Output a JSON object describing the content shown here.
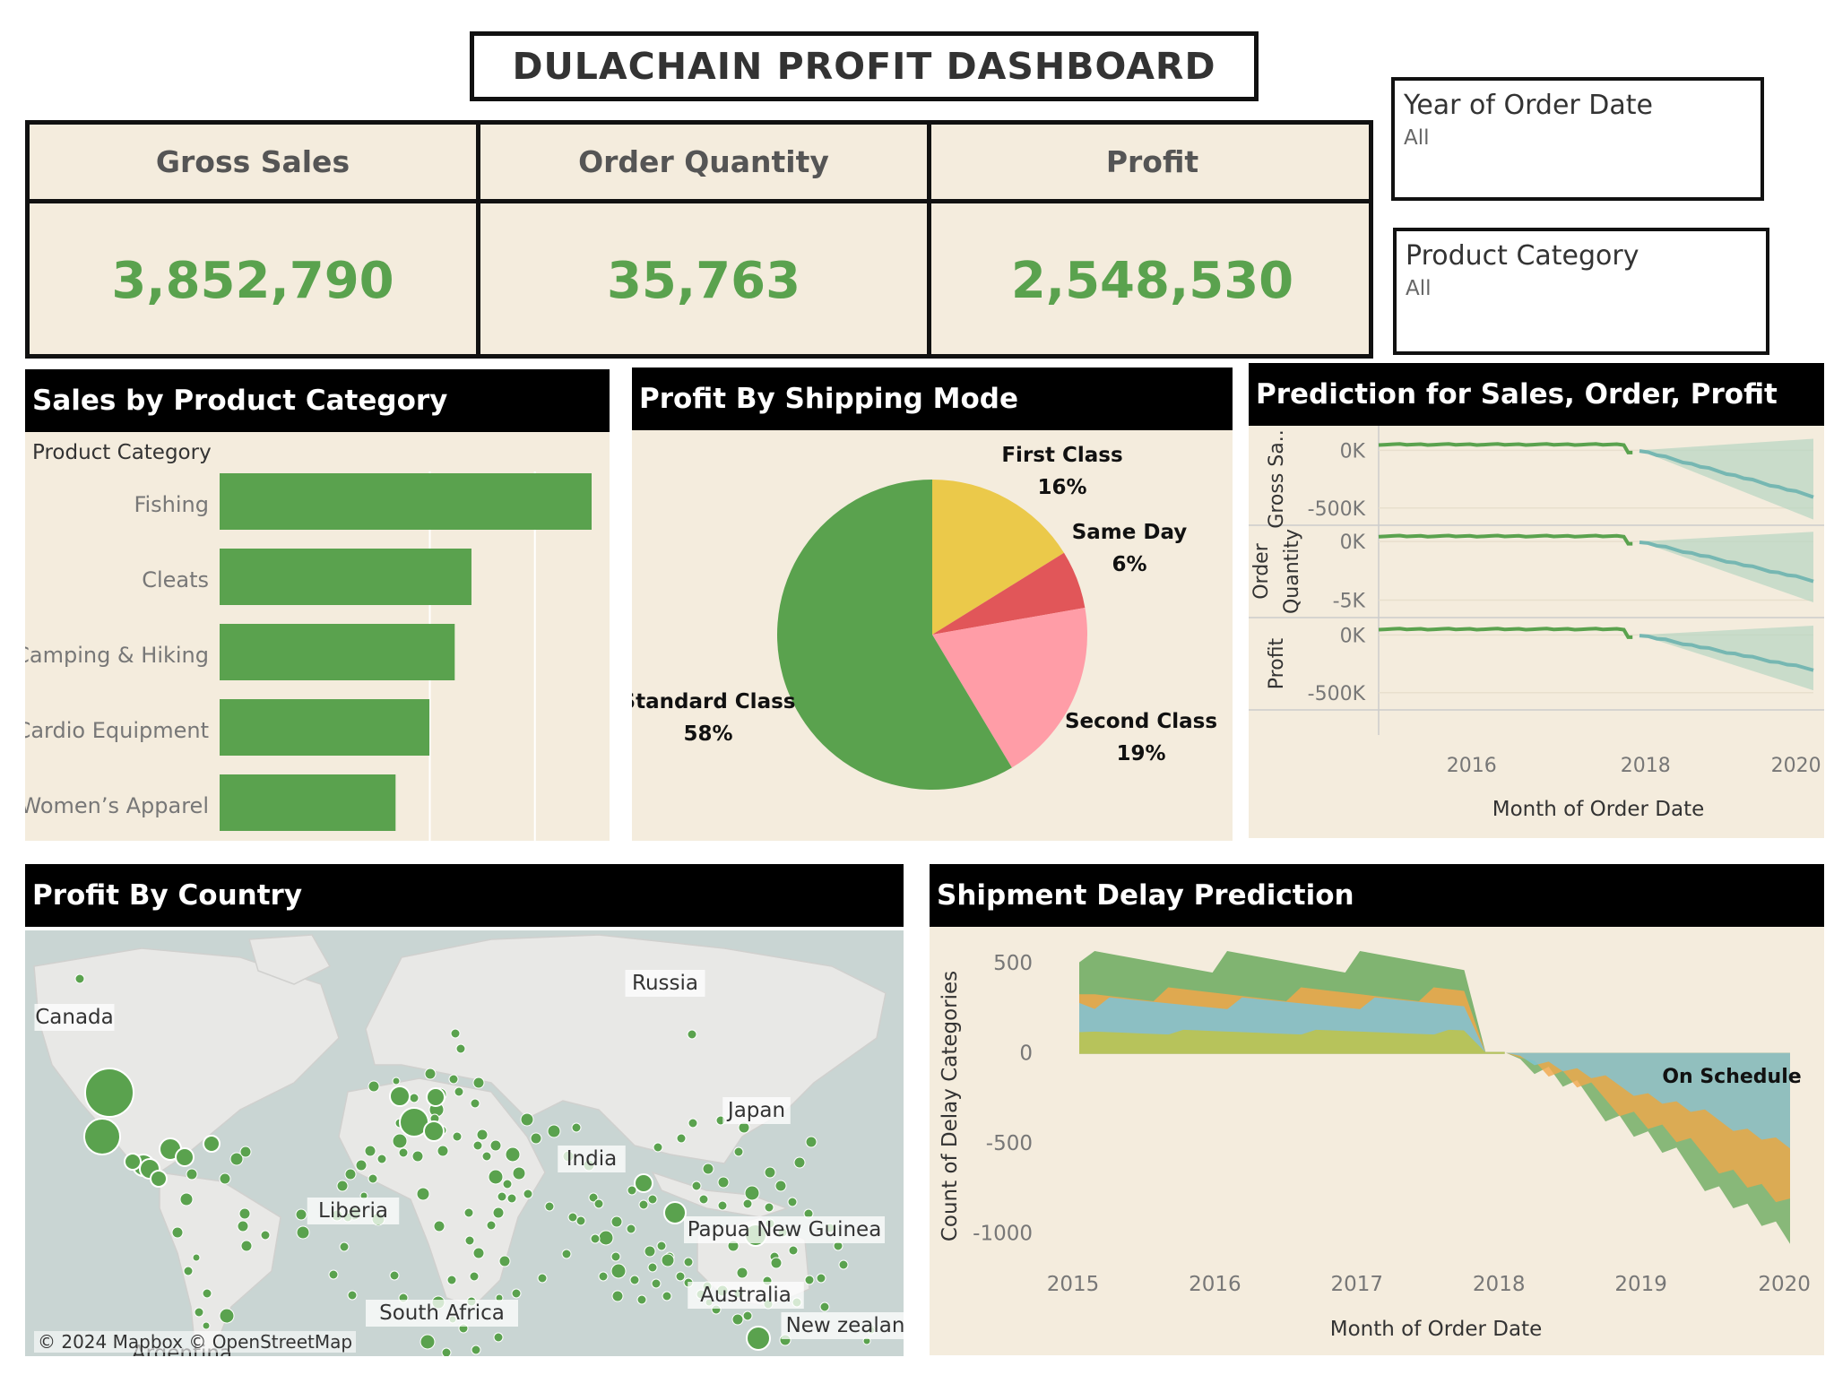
{
  "dashboard_title": "DULACHAIN PROFIT DASHBOARD",
  "kpis": [
    {
      "label": "Gross Sales",
      "value": "3,852,790"
    },
    {
      "label": "Order Quantity",
      "value": "35,763"
    },
    {
      "label": "Profit",
      "value": "2,548,530"
    }
  ],
  "filters": {
    "year": {
      "title": "Year of Order Date",
      "value": "All"
    },
    "category": {
      "title": "Product Category",
      "value": "All"
    }
  },
  "panels": {
    "sales_by_category": "Sales by Product Category",
    "profit_by_shipping": "Profit By Shipping Mode",
    "prediction": "Prediction for Sales, Order, Profit",
    "profit_by_country": "Profit By Country",
    "shipment_delay": "Shipment Delay Prediction"
  },
  "colors": {
    "green": "#5aa24e",
    "beige": "#f4ecdd",
    "yellow": "#ebc94a",
    "red": "#e15659",
    "pink": "#ff9da7",
    "teal": "#76b7b2",
    "light_blue": "#7ec4d8",
    "orange": "#f0a84b",
    "olive": "#bfc44a"
  },
  "chart_data": [
    {
      "type": "bar",
      "title": "Sales by Product Category",
      "axis_header": "Product Category",
      "categories": [
        "Fishing",
        "Cleats",
        "Camping & Hiking",
        "Cardio Equipment",
        "Women's Apparel"
      ],
      "values": [
        1.0,
        0.677,
        0.632,
        0.564,
        0.473
      ],
      "grid": true
    },
    {
      "type": "pie",
      "title": "Profit By Shipping Mode",
      "slices": [
        {
          "label": "First Class",
          "pct": "16%",
          "value": 16,
          "color": "#ebc94a"
        },
        {
          "label": "Same Day",
          "pct": "6%",
          "value": 6,
          "color": "#e15659"
        },
        {
          "label": "Second Class",
          "pct": "19%",
          "value": 19,
          "color": "#ff9da7"
        },
        {
          "label": "Standard Class",
          "pct": "58%",
          "value": 58,
          "color": "#5aa24e"
        }
      ]
    },
    {
      "type": "line",
      "title": "Prediction for Sales, Order, Profit",
      "xlabel": "Month of Order Date",
      "x_ticks": [
        "2016",
        "2018",
        "2020"
      ],
      "x_range": [
        2015,
        2020
      ],
      "rows": [
        {
          "name": "Gross Sa..",
          "ticks": [
            "0K",
            "-500K"
          ],
          "ylim": [
            -650000,
            150000
          ],
          "actual": {
            "x_start": 2015,
            "x_end": 2017.92,
            "value": 50000,
            "drop": -20000
          },
          "forecast": {
            "x_start": 2018,
            "x_end": 2020,
            "start": 0,
            "end": -400000,
            "band_low_end": -600000,
            "band_high_end": 100000
          }
        },
        {
          "name": "Order Quantity",
          "name_lines": [
            "Order",
            "Quantity"
          ],
          "ticks": [
            "0K",
            "-5K"
          ],
          "ylim": [
            -7000,
            1500
          ],
          "actual": {
            "x_start": 2015,
            "x_end": 2017.92,
            "value": 500,
            "drop": -200
          },
          "forecast": {
            "x_start": 2018,
            "x_end": 2020,
            "start": 0,
            "end": -3600,
            "band_low_end": -5600,
            "band_high_end": 900
          }
        },
        {
          "name": "Profit",
          "ticks": [
            "0K",
            "-500K"
          ],
          "ylim": [
            -650000,
            150000
          ],
          "actual": {
            "x_start": 2015,
            "x_end": 2017.92,
            "value": 50000,
            "drop": -20000
          },
          "forecast": {
            "x_start": 2018,
            "x_end": 2020,
            "start": 0,
            "end": -300000,
            "band_low_end": -480000,
            "band_high_end": 80000
          }
        }
      ]
    },
    {
      "type": "scatter",
      "title": "Profit By Country",
      "attribution": "© 2024 Mapbox © OpenStreetMap",
      "labels": [
        "Canada",
        "Russia",
        "Japan",
        "India",
        "Liberia",
        "Papua New Guinea",
        "Australia",
        "South Africa",
        "New zealan",
        "Argentina"
      ]
    },
    {
      "type": "area",
      "title": "Shipment Delay Prediction",
      "xlabel": "Month of Order Date",
      "ylabel": "Count of Delay Categories",
      "y_ticks": [
        "500",
        "0",
        "-500",
        "-1000"
      ],
      "ylim": [
        -1200,
        600
      ],
      "x_ticks": [
        "2015",
        "2016",
        "2017",
        "2018",
        "2019",
        "2020"
      ],
      "x_range": [
        2015,
        2020
      ],
      "annotation": "On Schedule",
      "series": [
        {
          "name": "On Schedule",
          "color": "#bfc44a",
          "historic_top": 110,
          "forecast_end": 0
        },
        {
          "name": "",
          "color": "#7ec4d8",
          "historic_top": 270,
          "forecast_end": -520
        },
        {
          "name": "",
          "color": "#f0a84b",
          "historic_top": 320,
          "forecast_end": -860
        },
        {
          "name": "",
          "color": "#5aa24e",
          "historic_top": 500,
          "forecast_end": -1060
        }
      ]
    }
  ]
}
